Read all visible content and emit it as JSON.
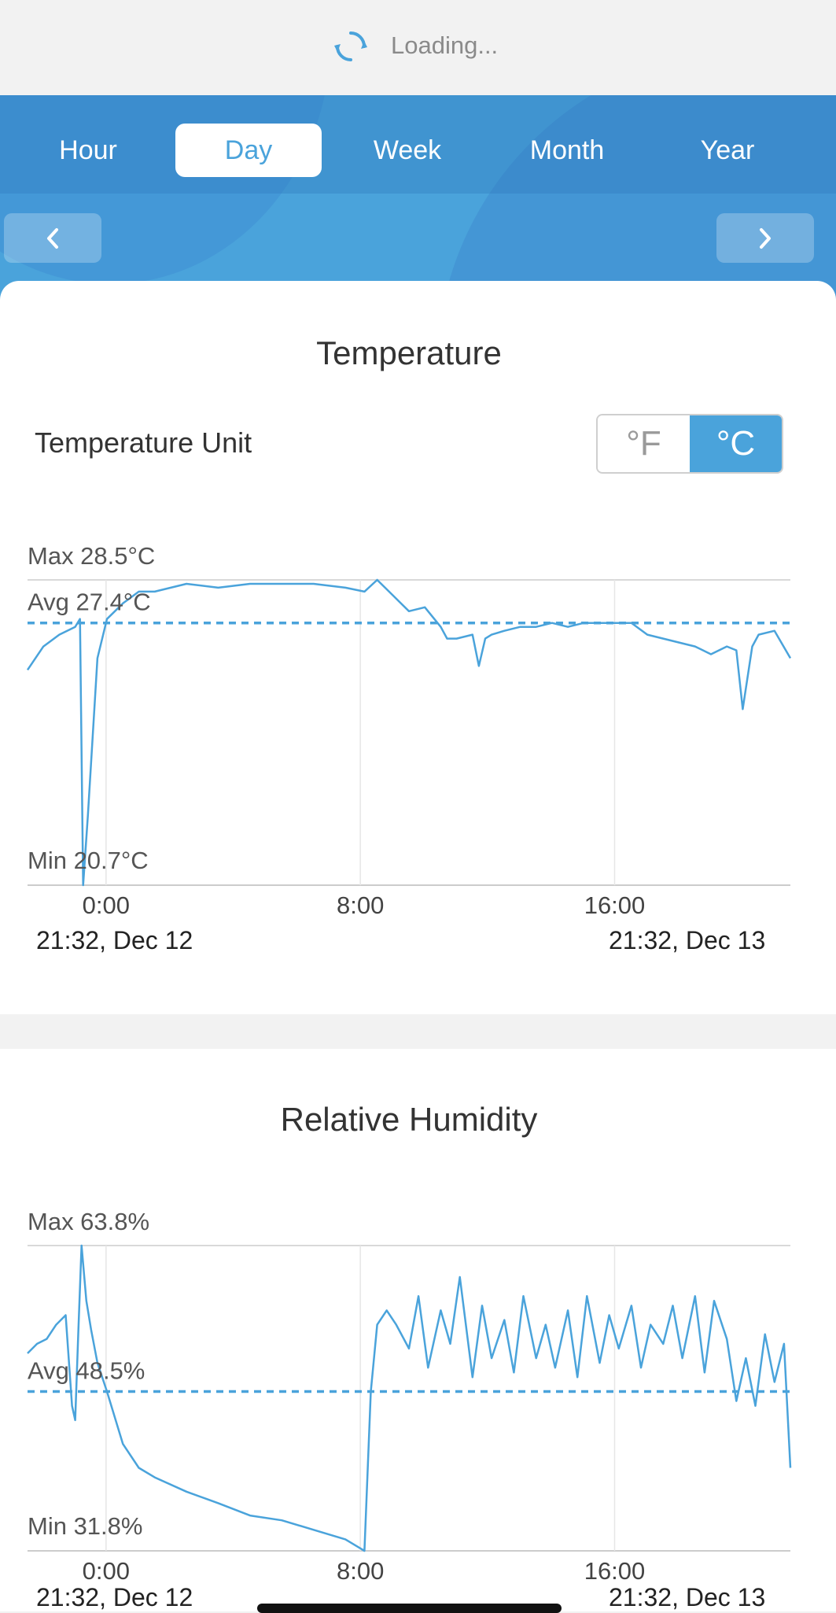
{
  "loading": {
    "text": "Loading...",
    "icon": "refresh-spinner-icon"
  },
  "periods": [
    {
      "label": "Hour",
      "active": false
    },
    {
      "label": "Day",
      "active": true
    },
    {
      "label": "Week",
      "active": false
    },
    {
      "label": "Month",
      "active": false
    },
    {
      "label": "Year",
      "active": false
    }
  ],
  "nav": {
    "prev_icon": "chevron-left-icon",
    "next_icon": "chevron-right-icon"
  },
  "colors": {
    "accent": "#4aa3db",
    "line": "#4aa3db",
    "grid": "#d9d9d9"
  },
  "temperature": {
    "title": "Temperature",
    "unit_label": "Temperature Unit",
    "unit_options": [
      "°F",
      "°C"
    ],
    "unit_selected": "°C"
  },
  "humidity": {
    "title": "Relative Humidity"
  },
  "chart_data": [
    {
      "type": "line",
      "name": "temperature",
      "max_label": "Max 28.5°C",
      "avg_label": "Avg 27.4°C",
      "min_label": "Min 20.7°C",
      "ylim": [
        20.7,
        28.5
      ],
      "avg": 27.4,
      "x_ticks": [
        "0:00",
        "8:00",
        "16:00"
      ],
      "x_tick_hours": [
        2.47,
        10.47,
        18.47
      ],
      "start_label": "21:32,  Dec 12",
      "end_label": "21:32,  Dec 13",
      "x_hours": [
        0,
        0.5,
        1.0,
        1.5,
        1.65,
        1.75,
        1.9,
        2.2,
        2.5,
        3,
        3.5,
        4,
        5,
        6,
        7,
        8,
        9,
        10,
        10.6,
        11,
        11.5,
        12,
        12.5,
        13,
        13.2,
        13.5,
        14,
        14.2,
        14.4,
        14.6,
        15,
        15.5,
        16,
        16.5,
        17,
        17.5,
        18,
        18.5,
        19,
        19.5,
        20,
        20.5,
        21,
        21.5,
        22,
        22.3,
        22.5,
        22.8,
        23,
        23.5,
        24
      ],
      "y_values": [
        26.2,
        26.8,
        27.1,
        27.3,
        27.5,
        20.7,
        22.5,
        26.5,
        27.5,
        27.9,
        28.2,
        28.2,
        28.4,
        28.3,
        28.4,
        28.4,
        28.4,
        28.3,
        28.2,
        28.5,
        28.1,
        27.7,
        27.8,
        27.3,
        27.0,
        27.0,
        27.1,
        26.3,
        27.0,
        27.1,
        27.2,
        27.3,
        27.3,
        27.4,
        27.3,
        27.4,
        27.4,
        27.4,
        27.4,
        27.1,
        27.0,
        26.9,
        26.8,
        26.6,
        26.8,
        26.7,
        25.2,
        26.8,
        27.1,
        27.2,
        26.5
      ]
    },
    {
      "type": "line",
      "name": "relative-humidity",
      "max_label": "Max 63.8%",
      "avg_label": "Avg 48.5%",
      "min_label": "Min 31.8%",
      "ylim": [
        31.8,
        63.8
      ],
      "avg": 48.5,
      "x_ticks": [
        "0:00",
        "8:00",
        "16:00"
      ],
      "x_tick_hours": [
        2.47,
        10.47,
        18.47
      ],
      "start_label": "21:32,  Dec 12",
      "end_label": "21:32,  Dec 13",
      "x_hours": [
        0,
        0.3,
        0.6,
        0.9,
        1.2,
        1.4,
        1.5,
        1.6,
        1.7,
        1.85,
        2.0,
        2.2,
        2.5,
        3,
        3.5,
        4,
        5,
        6,
        7,
        8,
        9,
        10,
        10.5,
        10.6,
        10.8,
        11,
        11.3,
        11.6,
        12,
        12.3,
        12.6,
        13,
        13.3,
        13.6,
        14,
        14.3,
        14.6,
        15,
        15.3,
        15.6,
        16,
        16.3,
        16.6,
        17,
        17.3,
        17.6,
        18,
        18.3,
        18.6,
        19,
        19.3,
        19.6,
        20,
        20.3,
        20.6,
        21,
        21.3,
        21.6,
        22,
        22.3,
        22.6,
        22.9,
        23.2,
        23.5,
        23.8,
        24
      ],
      "y_values": [
        52.5,
        53.5,
        54.0,
        55.5,
        56.5,
        47.0,
        45.5,
        55.0,
        63.8,
        58.0,
        55.0,
        51.5,
        48.5,
        43.0,
        40.5,
        39.5,
        38.0,
        36.8,
        35.5,
        35.0,
        34.0,
        33.0,
        32.0,
        31.8,
        48.5,
        55.5,
        57.0,
        55.5,
        53.0,
        58.5,
        51.0,
        57.0,
        53.5,
        60.5,
        50.0,
        57.5,
        52.0,
        56.0,
        50.5,
        58.5,
        52.0,
        55.5,
        51.0,
        57.0,
        50.0,
        58.5,
        51.5,
        56.5,
        53.0,
        57.5,
        51.0,
        55.5,
        53.5,
        57.5,
        52.0,
        58.5,
        50.5,
        58.0,
        54.0,
        47.5,
        52.0,
        47.0,
        54.5,
        49.5,
        53.5,
        40.5
      ]
    }
  ]
}
